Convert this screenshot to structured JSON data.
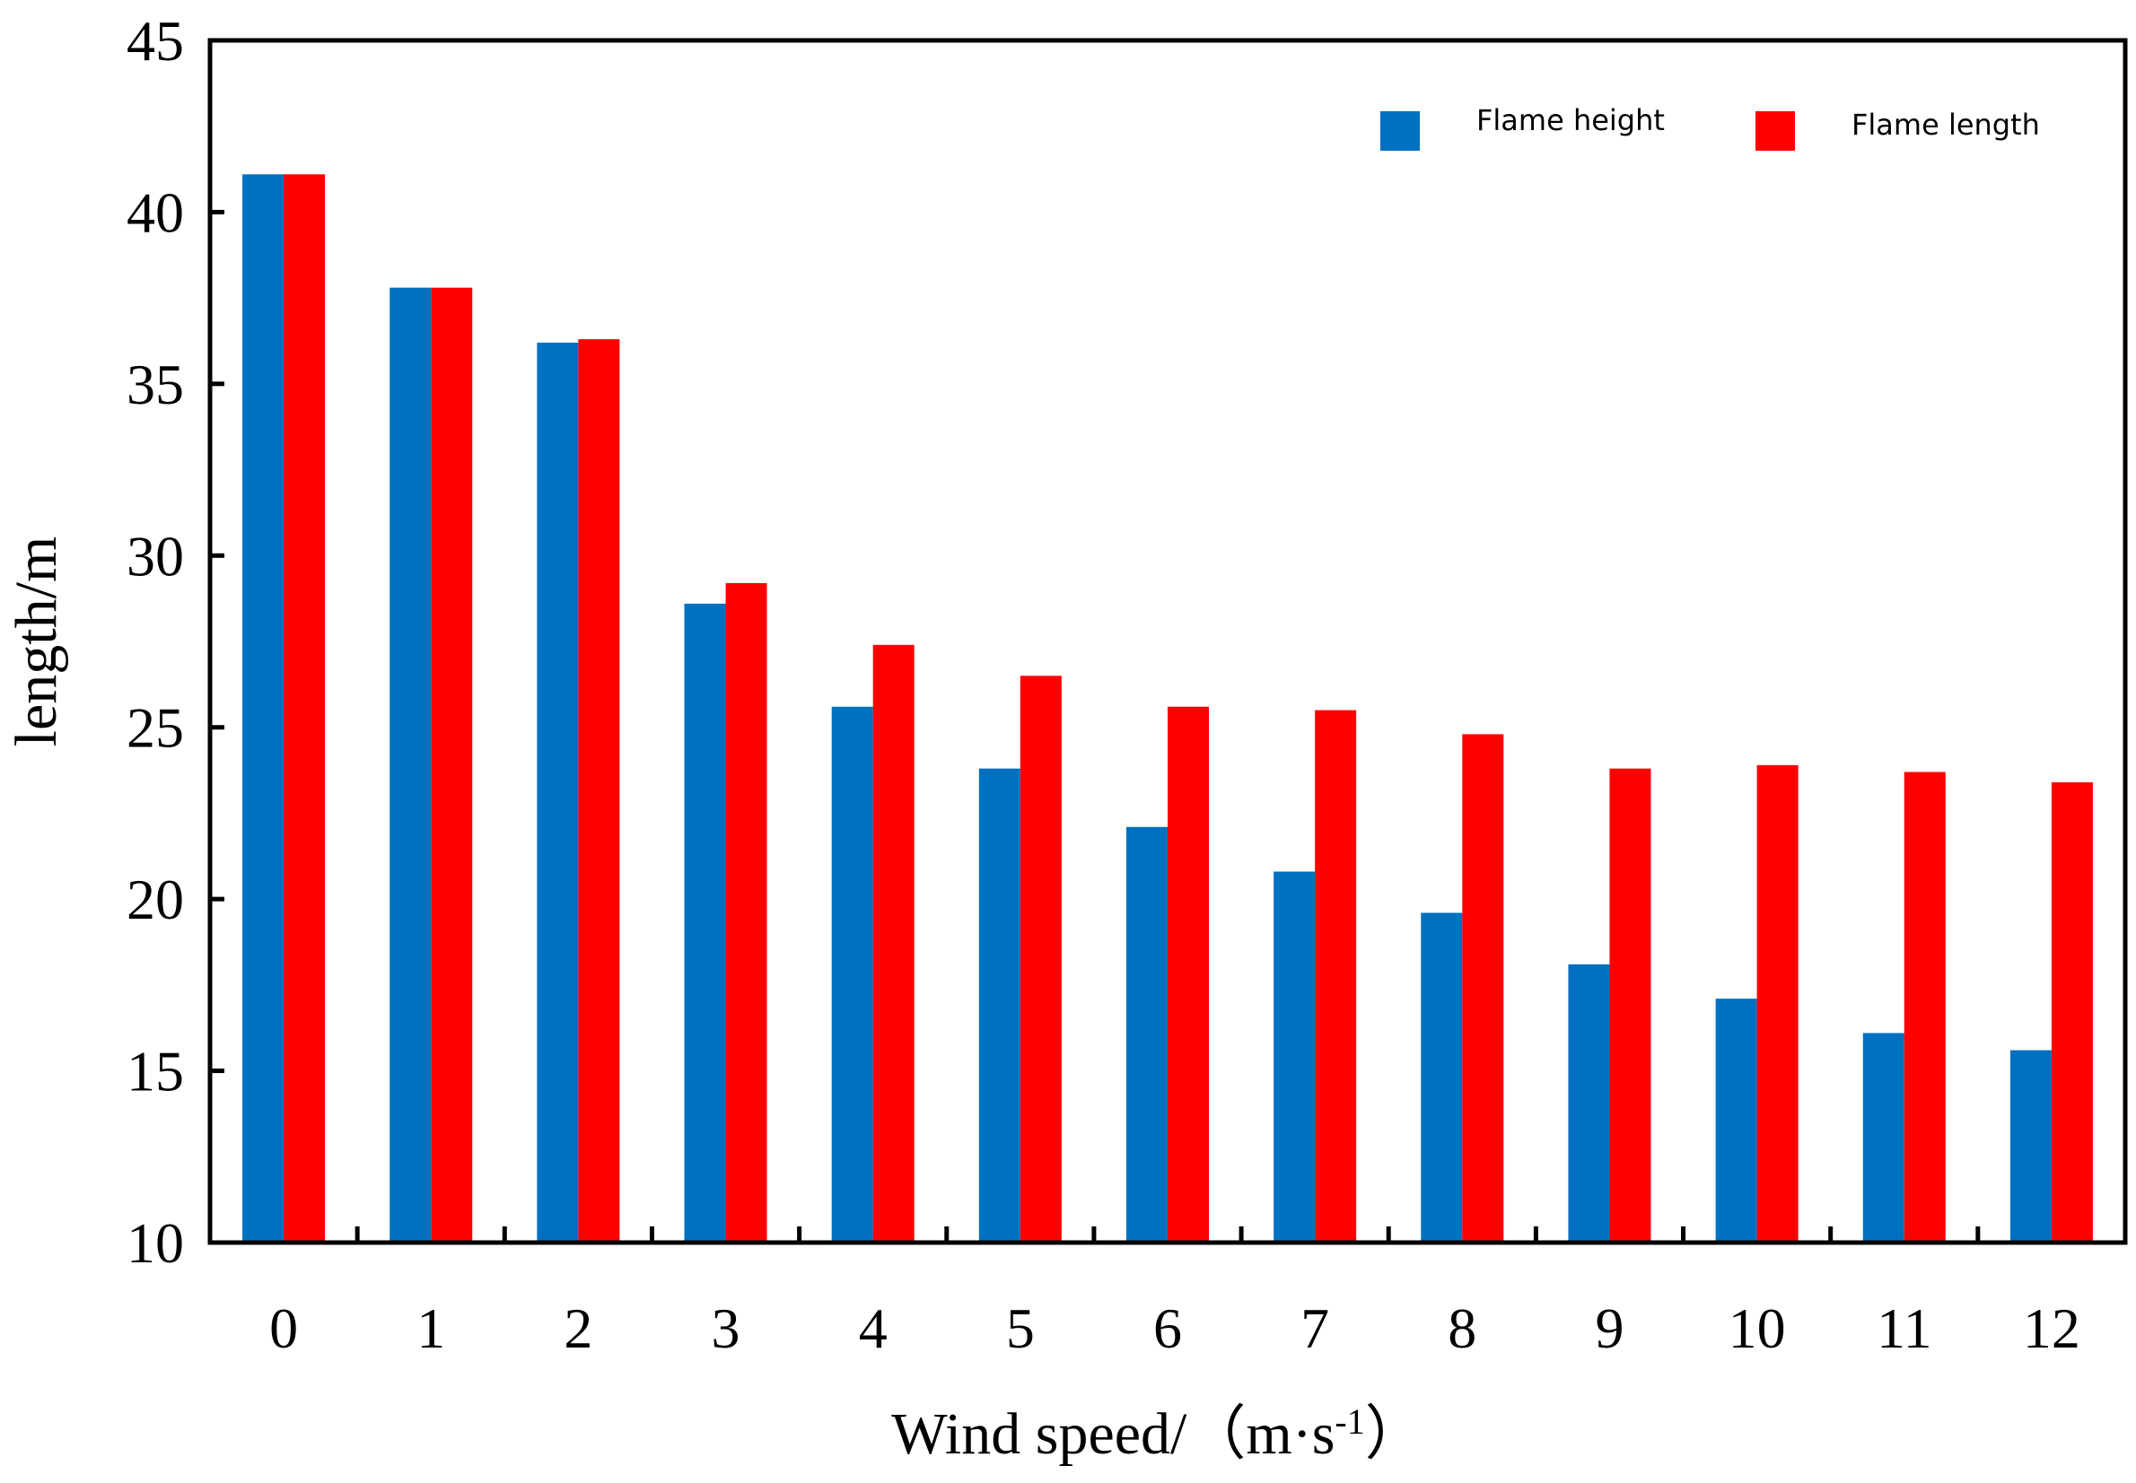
{
  "chart_data": {
    "type": "bar",
    "categories": [
      "0",
      "1",
      "2",
      "3",
      "4",
      "5",
      "6",
      "7",
      "8",
      "9",
      "10",
      "11",
      "12"
    ],
    "series": [
      {
        "name": "Flame height",
        "color": "#0070C0",
        "values": [
          41.1,
          37.8,
          36.2,
          28.6,
          25.6,
          23.8,
          22.1,
          20.8,
          19.6,
          18.1,
          17.1,
          16.1,
          15.6
        ]
      },
      {
        "name": "Flame length",
        "color": "#FF0000",
        "values": [
          41.1,
          37.8,
          36.3,
          29.2,
          27.4,
          26.5,
          25.6,
          25.5,
          24.8,
          23.8,
          23.9,
          23.7,
          23.4
        ]
      }
    ],
    "xlabel": "Wind speed/（m·s",
    "xlabel_sup": "-1",
    "xlabel_close": "）",
    "ylabel": "length/m",
    "ylim": [
      10,
      45
    ],
    "yticks": [
      10,
      15,
      20,
      25,
      30,
      35,
      40,
      45
    ],
    "legend_position": "top-right"
  }
}
